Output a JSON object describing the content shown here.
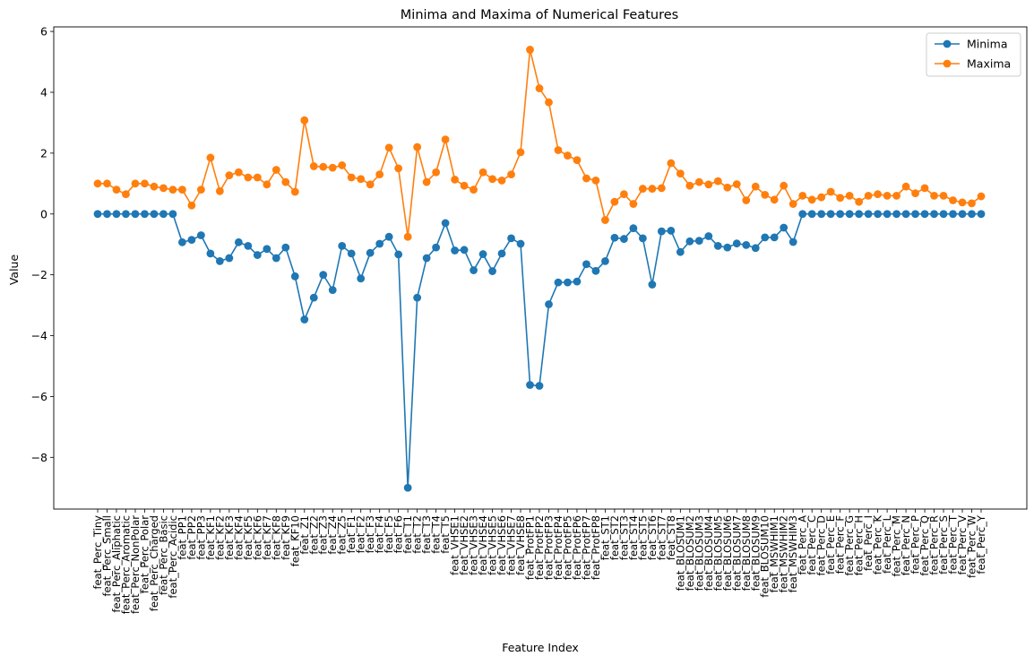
{
  "chart_data": {
    "type": "line",
    "title": "Minima and Maxima of Numerical Features",
    "xlabel": "Feature Index",
    "ylabel": "Value",
    "ylim": [
      -9.7,
      6.15
    ],
    "yticks": [
      -8,
      -6,
      -4,
      -2,
      0,
      2,
      4,
      6
    ],
    "legend_position": "top-right",
    "grid": false,
    "categories": [
      "feat_Perc_Tiny",
      "feat_Perc_Small",
      "feat_Perc_Aliphatic",
      "feat_Perc_Aromatic",
      "feat_Perc_NonPolar",
      "feat_Perc_Polar",
      "feat_Perc_Charged",
      "feat_Perc_Basic",
      "feat_Perc_Acidic",
      "feat_PP1",
      "feat_PP2",
      "feat_PP3",
      "feat_KF1",
      "feat_KF2",
      "feat_KF3",
      "feat_KF4",
      "feat_KF5",
      "feat_KF6",
      "feat_KF7",
      "feat_KF8",
      "feat_KF9",
      "feat_KF10",
      "feat_Z1",
      "feat_Z2",
      "feat_Z3",
      "feat_Z4",
      "feat_Z5",
      "feat_F1",
      "feat_F2",
      "feat_F3",
      "feat_F4",
      "feat_F5",
      "feat_F6",
      "feat_T1",
      "feat_T2",
      "feat_T3",
      "feat_T4",
      "feat_T5",
      "feat_VHSE1",
      "feat_VHSE2",
      "feat_VHSE3",
      "feat_VHSE4",
      "feat_VHSE5",
      "feat_VHSE6",
      "feat_VHSE7",
      "feat_VHSE8",
      "feat_ProtFP1",
      "feat_ProtFP2",
      "feat_ProtFP3",
      "feat_ProtFP4",
      "feat_ProtFP5",
      "feat_ProtFP6",
      "feat_ProtFP7",
      "feat_ProtFP8",
      "feat_ST1",
      "feat_ST2",
      "feat_ST3",
      "feat_ST4",
      "feat_ST5",
      "feat_ST6",
      "feat_ST7",
      "feat_ST8",
      "feat_BLOSUM1",
      "feat_BLOSUM2",
      "feat_BLOSUM3",
      "feat_BLOSUM4",
      "feat_BLOSUM5",
      "feat_BLOSUM6",
      "feat_BLOSUM7",
      "feat_BLOSUM8",
      "feat_BLOSUM9",
      "feat_BLOSUM10",
      "feat_MSWHIM1",
      "feat_MSWHIM2",
      "feat_MSWHIM3",
      "feat_Perc_A",
      "feat_Perc_C",
      "feat_Perc_D",
      "feat_Perc_E",
      "feat_Perc_F",
      "feat_Perc_G",
      "feat_Perc_H",
      "feat_Perc_I",
      "feat_Perc_K",
      "feat_Perc_L",
      "feat_Perc_M",
      "feat_Perc_N",
      "feat_Perc_P",
      "feat_Perc_Q",
      "feat_Perc_R",
      "feat_Perc_S",
      "feat_Perc_T",
      "feat_Perc_V",
      "feat_Perc_W",
      "feat_Perc_Y"
    ],
    "series": [
      {
        "name": "Minima",
        "color": "#1f77b4",
        "values": [
          0,
          0,
          0,
          0,
          0,
          0,
          0,
          0,
          0,
          -0.93,
          -0.85,
          -0.7,
          -1.3,
          -1.55,
          -1.45,
          -0.93,
          -1.05,
          -1.35,
          -1.15,
          -1.45,
          -1.1,
          -2.05,
          -3.47,
          -2.75,
          -2.0,
          -2.5,
          -1.05,
          -1.3,
          -2.12,
          -1.28,
          -0.98,
          -0.75,
          -1.33,
          -9.0,
          -2.75,
          -1.45,
          -1.1,
          -0.3,
          -1.2,
          -1.18,
          -1.85,
          -1.32,
          -1.88,
          -1.3,
          -0.8,
          -0.98,
          -5.62,
          -5.65,
          -2.97,
          -2.25,
          -2.25,
          -2.22,
          -1.65,
          -1.87,
          -1.55,
          -0.78,
          -0.82,
          -0.47,
          -0.8,
          -2.32,
          -0.57,
          -0.55,
          -1.25,
          -0.9,
          -0.88,
          -0.73,
          -1.05,
          -1.1,
          -0.97,
          -1.02,
          -1.12,
          -0.77,
          -0.77,
          -0.45,
          -0.92,
          0,
          0,
          0,
          0,
          0,
          0,
          0,
          0,
          0,
          0,
          0,
          0,
          0,
          0,
          0,
          0,
          0,
          0,
          0,
          0
        ]
      },
      {
        "name": "Maxima",
        "color": "#ff7f0e",
        "values": [
          1.0,
          1.0,
          0.8,
          0.65,
          1.0,
          1.0,
          0.9,
          0.85,
          0.8,
          0.8,
          0.28,
          0.8,
          1.85,
          0.75,
          1.27,
          1.37,
          1.2,
          1.2,
          0.97,
          1.45,
          1.05,
          0.73,
          3.08,
          1.57,
          1.55,
          1.52,
          1.6,
          1.2,
          1.15,
          0.97,
          1.3,
          2.18,
          1.5,
          -0.75,
          2.2,
          1.05,
          1.37,
          2.45,
          1.13,
          0.93,
          0.8,
          1.37,
          1.15,
          1.1,
          1.3,
          2.03,
          5.4,
          4.13,
          3.67,
          2.1,
          1.92,
          1.77,
          1.17,
          1.1,
          -0.2,
          0.4,
          0.65,
          0.33,
          0.83,
          0.83,
          0.85,
          1.67,
          1.33,
          0.93,
          1.05,
          0.97,
          1.08,
          0.87,
          0.98,
          0.45,
          0.9,
          0.63,
          0.47,
          0.93,
          0.33,
          0.6,
          0.47,
          0.55,
          0.73,
          0.53,
          0.6,
          0.4,
          0.6,
          0.65,
          0.6,
          0.6,
          0.9,
          0.68,
          0.85,
          0.6,
          0.6,
          0.45,
          0.38,
          0.35,
          0.58
        ]
      }
    ]
  }
}
